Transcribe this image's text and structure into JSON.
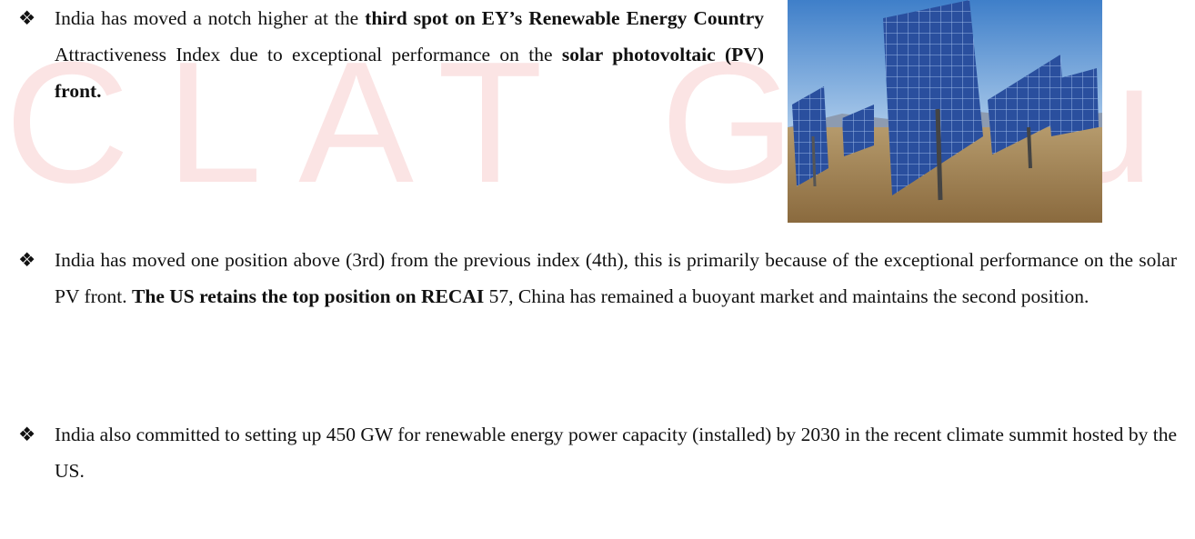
{
  "watermark": "CLAT Guru",
  "bullet": "❖",
  "bullets": [
    [
      {
        "text": "India has moved a notch higher at the ",
        "bold": false
      },
      {
        "text": "third spot on EY’s Renewable Energy Country",
        "bold": true
      },
      {
        "text": " Attractiveness Index due to exceptional performance on the ",
        "bold": false
      },
      {
        "text": "solar photovoltaic (PV) front.",
        "bold": true
      }
    ],
    [
      {
        "text": "India has moved one position above (3rd) from the previous index (4th), this is primarily because of the exceptional performance on the solar PV front. ",
        "bold": false
      },
      {
        "text": "The US retains the top position on RECAI",
        "bold": true
      },
      {
        "text": " 57, China has remained a buoyant market and maintains the second position.",
        "bold": false
      }
    ],
    [
      {
        "text": "India also committed to setting up 450 GW for renewable energy power capacity (installed) by 2030 in the recent climate summit hosted by the US.",
        "bold": false
      }
    ]
  ]
}
